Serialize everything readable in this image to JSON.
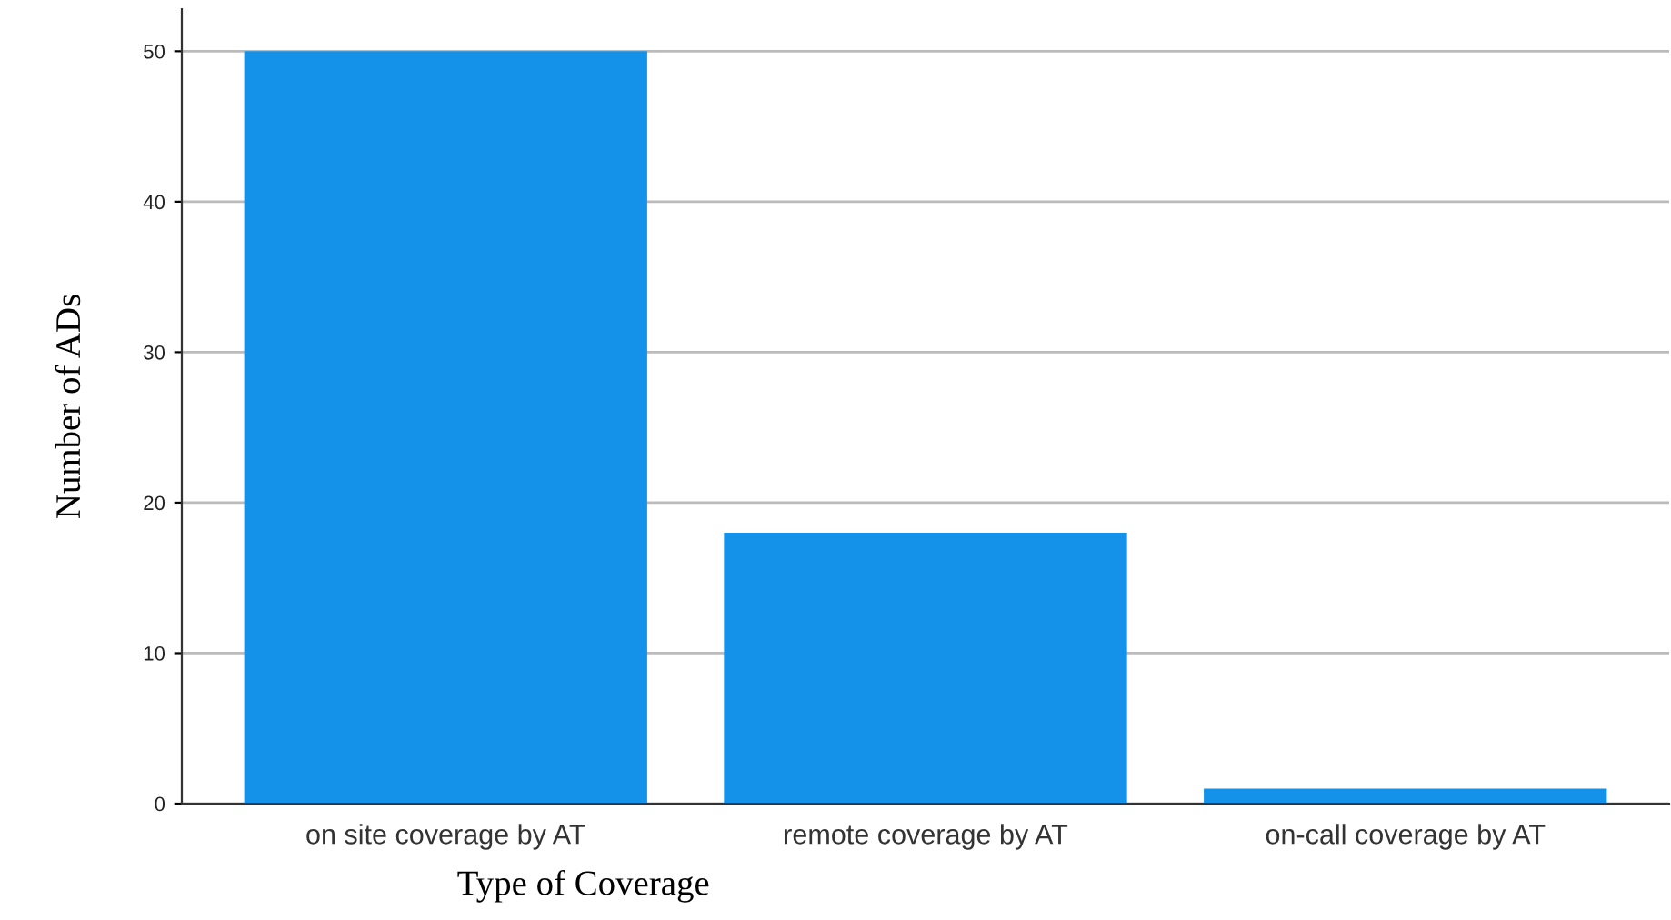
{
  "chart_data": {
    "type": "bar",
    "xlabel": "Type of Coverage",
    "ylabel": "Number of ADs",
    "categories": [
      "on site coverage by AT",
      "remote coverage by AT",
      "on-call coverage by AT"
    ],
    "values": [
      50,
      18,
      1
    ],
    "color": "#1491e8",
    "ylim": [
      0,
      52.8
    ],
    "yticks": [
      0,
      10,
      20,
      30,
      40,
      50
    ],
    "grid": "y"
  }
}
